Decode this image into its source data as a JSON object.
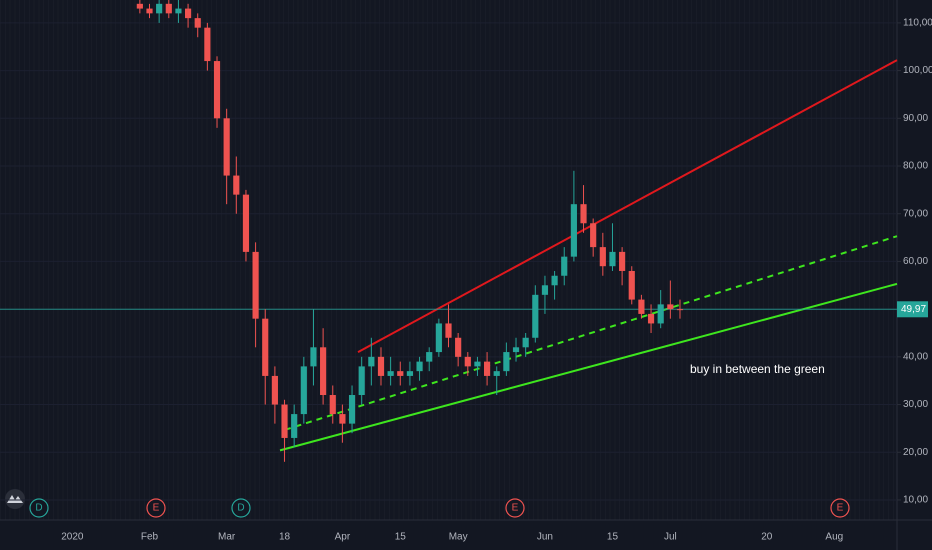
{
  "chart_data": {
    "type": "candlestick",
    "categories": [
      null,
      null,
      null,
      null,
      null,
      null,
      null,
      "2020",
      null,
      null,
      null,
      null,
      null,
      null,
      null,
      "Feb",
      null,
      null,
      null,
      null,
      null,
      null,
      null,
      "Mar",
      null,
      null,
      null,
      null,
      null,
      "18",
      null,
      null,
      null,
      null,
      null,
      "Apr",
      null,
      null,
      null,
      null,
      null,
      "15",
      null,
      null,
      null,
      null,
      null,
      "May",
      null,
      null,
      null,
      null,
      null,
      null,
      null,
      null,
      "Jun",
      null,
      null,
      null,
      null,
      null,
      null,
      "15",
      null,
      null,
      null,
      null,
      null,
      "Jul",
      null,
      null,
      null,
      null,
      null,
      null,
      null,
      null,
      null,
      "20",
      null,
      null,
      null,
      null,
      null,
      null,
      "Aug",
      null,
      null,
      null,
      null,
      null,
      null
    ],
    "open": [
      null,
      null,
      null,
      null,
      null,
      null,
      null,
      null,
      null,
      null,
      null,
      null,
      null,
      null,
      114,
      113,
      112,
      114,
      112,
      113,
      111,
      109,
      102,
      90,
      78,
      74,
      62,
      48,
      36,
      30,
      23,
      28,
      38,
      42,
      32,
      28,
      26,
      32,
      38,
      40,
      36,
      37,
      36,
      37,
      39,
      41,
      47,
      44,
      40,
      38,
      39,
      36,
      37,
      41,
      42,
      44,
      53,
      55,
      57,
      61,
      72,
      68,
      63,
      59,
      62,
      58,
      52,
      49,
      47,
      51,
      50,
      null,
      null,
      null,
      null,
      null,
      null,
      null,
      null,
      null,
      null,
      null,
      null,
      null,
      null,
      null,
      null,
      null,
      null,
      null,
      null,
      null,
      null
    ],
    "high": [
      null,
      null,
      null,
      null,
      null,
      null,
      null,
      null,
      null,
      null,
      null,
      null,
      null,
      null,
      116,
      114,
      115,
      116,
      115,
      114,
      112,
      110,
      103,
      92,
      82,
      75,
      64,
      50,
      38,
      31,
      30,
      40,
      50,
      46,
      34,
      30,
      34,
      40,
      44,
      42,
      40,
      39,
      39,
      40,
      42,
      48,
      51,
      45,
      41,
      40,
      41,
      38,
      43,
      44,
      45,
      55,
      57,
      58,
      63,
      79,
      76,
      69,
      66,
      68,
      63,
      59,
      53,
      51,
      54,
      56,
      52,
      null,
      null,
      null,
      null,
      null,
      null,
      null,
      null,
      null,
      null,
      null,
      null,
      null,
      null,
      null,
      null,
      null,
      null,
      null,
      null,
      null,
      null
    ],
    "low": [
      null,
      null,
      null,
      null,
      null,
      null,
      null,
      null,
      null,
      null,
      null,
      null,
      null,
      null,
      112,
      111,
      110,
      111,
      110,
      109,
      107,
      100,
      88,
      72,
      70,
      60,
      42,
      30,
      26,
      18,
      21,
      26,
      34,
      30,
      26,
      22,
      24,
      30,
      34,
      34,
      34,
      34,
      34,
      35,
      37,
      40,
      42,
      38,
      36,
      36,
      34,
      32,
      36,
      39,
      40,
      43,
      49,
      52,
      55,
      60,
      66,
      61,
      57,
      58,
      55,
      51,
      48,
      45,
      46,
      48,
      48,
      null,
      null,
      null,
      null,
      null,
      null,
      null,
      null,
      null,
      null,
      null,
      null,
      null,
      null,
      null,
      null,
      null,
      null,
      null,
      null,
      null,
      null
    ],
    "close": [
      null,
      null,
      null,
      null,
      null,
      null,
      null,
      null,
      null,
      null,
      null,
      null,
      null,
      null,
      113,
      112,
      114,
      112,
      113,
      111,
      109,
      102,
      90,
      78,
      74,
      62,
      48,
      36,
      30,
      23,
      28,
      38,
      42,
      32,
      28,
      26,
      32,
      38,
      40,
      36,
      37,
      36,
      37,
      39,
      41,
      47,
      44,
      40,
      38,
      39,
      36,
      37,
      41,
      42,
      44,
      53,
      55,
      57,
      61,
      72,
      68,
      63,
      59,
      62,
      58,
      52,
      49,
      47,
      51,
      50,
      49.97,
      null,
      null,
      null,
      null,
      null,
      null,
      null,
      null,
      null,
      null,
      null,
      null,
      null,
      null,
      null,
      null,
      null,
      null,
      null,
      null,
      null,
      null
    ],
    "up_color": "#26a69a",
    "down_color": "#ef5350",
    "ylim": [
      5.8,
      114.8
    ],
    "yticks": [
      {
        "value": 10,
        "label": "10,00"
      },
      {
        "value": 20,
        "label": "20,00"
      },
      {
        "value": 30,
        "label": "30,00"
      },
      {
        "value": 40,
        "label": "40,00"
      },
      {
        "value": 50,
        "label": "50,00"
      },
      {
        "value": 60,
        "label": "60,00"
      },
      {
        "value": 70,
        "label": "70,00"
      },
      {
        "value": 80,
        "label": "80,00"
      },
      {
        "value": 90,
        "label": "90,00"
      },
      {
        "value": 100,
        "label": "100,00"
      },
      {
        "value": 110,
        "label": "110,00"
      }
    ],
    "grid": true,
    "last_price": {
      "value": 49.97,
      "label": "49,97",
      "color": "#26a69a"
    },
    "trendlines": [
      {
        "color": "#e0181d",
        "dashed": false,
        "values": [
          41.0,
          102.2
        ]
      },
      {
        "color": "#3ee61e",
        "dashed": false,
        "values": [
          20.4,
          55.3
        ]
      },
      {
        "color": "#3ee61e",
        "dashed": true,
        "values": [
          24.7,
          65.3
        ]
      }
    ],
    "annotation": "buy in between the green",
    "events": [
      {
        "label": "D",
        "color": "#26a69a"
      },
      {
        "label": "E",
        "color": "#ef5350"
      },
      {
        "label": "D",
        "color": "#26a69a"
      },
      {
        "label": "E",
        "color": "#ef5350"
      },
      {
        "label": "E",
        "color": "#ef5350"
      }
    ]
  }
}
